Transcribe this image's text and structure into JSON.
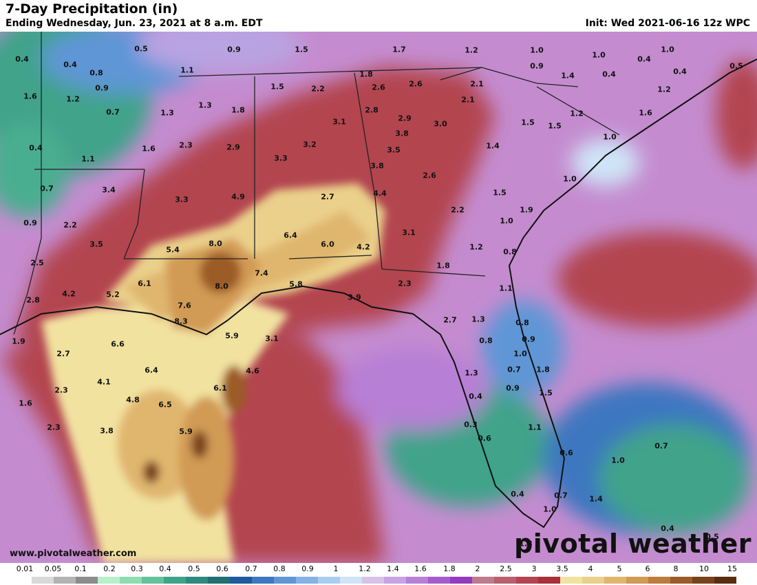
{
  "header": {
    "title": "7-Day Precipitation (in)",
    "subtitle": "Ending Wednesday, Jun. 23, 2021 at 8 a.m. EDT",
    "init": "Init: Wed 2021-06-16 12z WPC"
  },
  "footer": {
    "website": "www.pivotalweather.com",
    "brand": "pivotal weather"
  },
  "colors": {
    "legend": [
      "#ffffff",
      "#d9d9d9",
      "#b3b3b3",
      "#8c8c8c",
      "#b7f0c9",
      "#8fdcb0",
      "#64c29a",
      "#3fa38a",
      "#2e8a7e",
      "#1f6f73",
      "#1e5a9e",
      "#3c77c0",
      "#5f96d6",
      "#84b2e6",
      "#a9cdf0",
      "#cfe4f7",
      "#d8c2ec",
      "#c9a3e2",
      "#b77fd6",
      "#a65bcc",
      "#9539c0",
      "#c07a8e",
      "#b95f6e",
      "#b34450",
      "#a83038",
      "#f2e2a0",
      "#ead08a",
      "#e0b66e",
      "#d19a55",
      "#bd7c3d",
      "#9c5c28",
      "#7a421a",
      "#5a2d0e"
    ]
  },
  "legend": {
    "labels": [
      "0.01",
      "0.05",
      "0.1",
      "0.2",
      "0.3",
      "0.4",
      "0.5",
      "0.6",
      "0.7",
      "0.8",
      "0.9",
      "1",
      "1.2",
      "1.4",
      "1.6",
      "1.8",
      "2",
      "2.5",
      "3",
      "3.5",
      "4",
      "5",
      "6",
      "8",
      "10",
      "15"
    ]
  },
  "map_values": [
    "0.4",
    "0.5",
    "0.9",
    "1.5",
    "1.7",
    "1.2",
    "1.0",
    "1.0",
    "1.0",
    "0.9",
    "0.4",
    "0.5",
    "0.4",
    "0.8",
    "0.9",
    "1.6",
    "1.2",
    "1.1",
    "1.4",
    "0.4",
    "0.4",
    "1.5",
    "2.2",
    "2.6",
    "2.6",
    "2.1",
    "1.2",
    "1.8",
    "1.3",
    "0.7",
    "1.3",
    "1.8",
    "2.8",
    "2.1",
    "1.6",
    "1.2",
    "3.1",
    "2.9",
    "1.5",
    "1.5",
    "0.4",
    "1.6",
    "2.3",
    "2.9",
    "3.0",
    "3.8",
    "1.0",
    "1.1",
    "3.2",
    "3.5",
    "1.4",
    "3.3",
    "3.8",
    "2.6",
    "3.4",
    "3.3",
    "4.9",
    "2.7",
    "0.7",
    "1.0",
    "4.4",
    "1.5",
    "1.9",
    "0.9",
    "2.2",
    "2.2",
    "1.0",
    "3.5",
    "6.4",
    "6.0",
    "3.1",
    "5.4",
    "8.0",
    "4.2",
    "1.2",
    "2.5",
    "1.8",
    "0.8",
    "7.4",
    "8.0",
    "2.3",
    "1.1",
    "6.1",
    "5.2",
    "7.6",
    "5.8",
    "3.9",
    "4.2",
    "2.8",
    "8.3",
    "2.7",
    "1.3",
    "0.8",
    "5.9",
    "3.1",
    "0.8",
    "0.9",
    "1.9",
    "6.6",
    "1.0",
    "2.7",
    "4.6",
    "0.7",
    "1.8",
    "6.4",
    "1.3",
    "0.9",
    "4.1",
    "6.1",
    "1.5",
    "2.3",
    "1.6",
    "4.8",
    "6.5",
    "0.4",
    "2.3",
    "3.8",
    "0.3",
    "5.9",
    "0.6",
    "1.1",
    "0.7",
    "0.6",
    "1.0",
    "0.4",
    "0.7",
    "1.4",
    "1.0",
    "0.4",
    "1.3",
    "0.5",
    "1.5",
    "0.3"
  ]
}
